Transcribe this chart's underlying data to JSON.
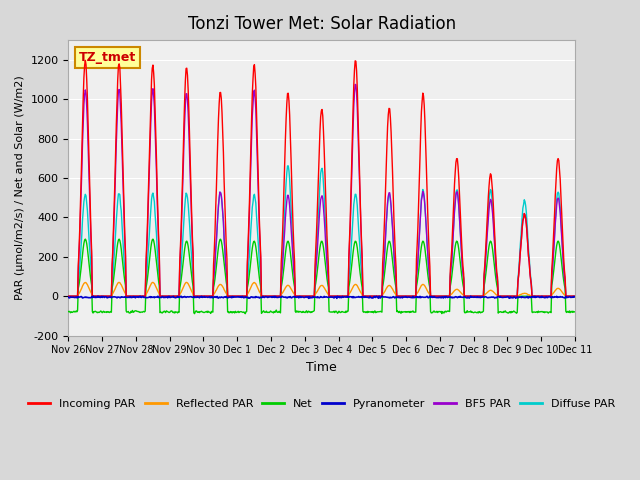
{
  "title": "Tonzi Tower Met: Solar Radiation",
  "xlabel": "Time",
  "ylabel": "PAR (μmol/m2/s) / Net and Solar (W/m2)",
  "ylim": [
    -200,
    1300
  ],
  "yticks": [
    -200,
    0,
    200,
    400,
    600,
    800,
    1000,
    1200
  ],
  "annotation_text": "TZ_tmet",
  "annotation_color": "#cc0000",
  "annotation_bg": "#ffff99",
  "annotation_border": "#cc8800",
  "background_color": "#e8e8e8",
  "plot_bg": "#f0f0f0",
  "series": {
    "incoming_par": {
      "color": "#ff0000",
      "label": "Incoming PAR",
      "lw": 1.5
    },
    "reflected_par": {
      "color": "#ff9900",
      "label": "Reflected PAR",
      "lw": 1.5
    },
    "net": {
      "color": "#00cc00",
      "label": "Net",
      "lw": 1.5
    },
    "pyranometer": {
      "color": "#0000cc",
      "label": "Pyranometer",
      "lw": 1.5
    },
    "bf5_par": {
      "color": "#9900cc",
      "label": "BF5 PAR",
      "lw": 1.5
    },
    "diffuse_par": {
      "color": "#00cccc",
      "label": "Diffuse PAR",
      "lw": 1.5
    }
  },
  "x_tick_labels": [
    "Nov 26",
    "Nov 27",
    "Nov 28",
    "Nov 29",
    "Nov 30",
    "Dec 1",
    "Dec 2",
    "Dec 3",
    "Dec 4",
    "Dec 5",
    "Dec 6",
    "Dec 7",
    "Dec 8",
    "Dec 9",
    "Dec 10",
    "Dec 11"
  ],
  "n_days": 15,
  "points_per_day": 48
}
